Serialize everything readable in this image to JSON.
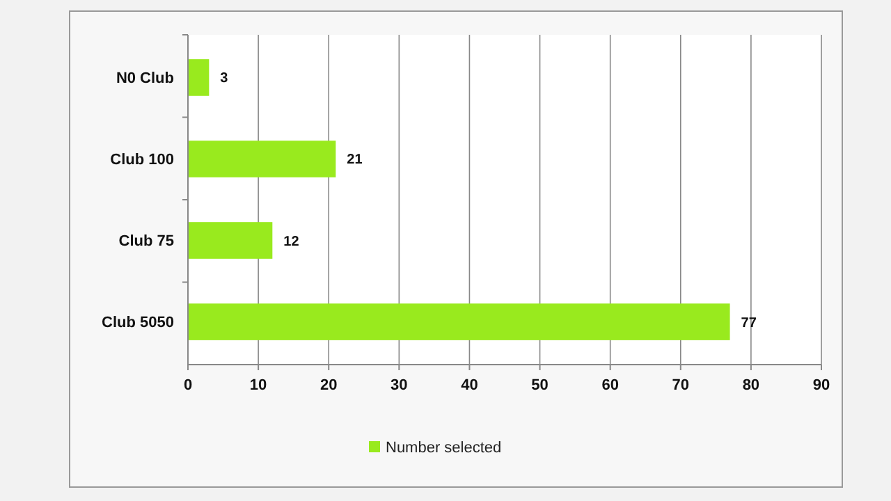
{
  "chart_data": {
    "type": "bar",
    "orientation": "horizontal",
    "categories": [
      "N0 Club",
      "Club 100",
      "Club 75",
      "Club 5050"
    ],
    "series": [
      {
        "name": "Number selected",
        "color": "#99ea1e",
        "values": [
          3,
          21,
          12,
          77
        ]
      }
    ],
    "xlim": [
      0,
      90
    ],
    "xticks": [
      0,
      10,
      20,
      30,
      40,
      50,
      60,
      70,
      80,
      90
    ],
    "grid": "x",
    "data_labels": true,
    "legend": "bottom"
  }
}
